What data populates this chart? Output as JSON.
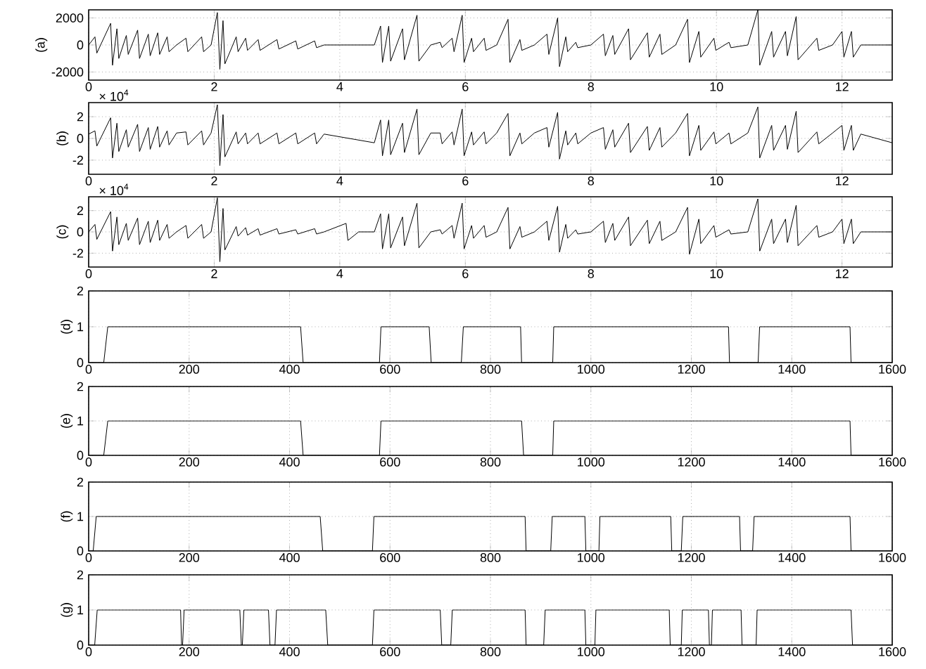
{
  "chart_data": [
    {
      "type": "line",
      "ylabel": "(a)",
      "color": "#000000",
      "grid": true,
      "xlim": [
        0,
        12.8
      ],
      "ylim": [
        -2600,
        2600
      ],
      "xticks": [
        0,
        2,
        4,
        6,
        8,
        10,
        12
      ],
      "yticks": [
        -2000,
        0,
        2000
      ],
      "x": [
        0,
        0.1,
        0.13,
        0.35,
        0.38,
        0.45,
        0.48,
        0.6,
        0.63,
        0.78,
        0.81,
        0.95,
        0.98,
        1.1,
        1.13,
        1.25,
        1.28,
        1.4,
        1.55,
        1.58,
        1.8,
        1.83,
        1.95,
        2.05,
        2.09,
        2.14,
        2.17,
        2.35,
        2.38,
        2.5,
        2.53,
        2.7,
        2.73,
        3.0,
        3.03,
        3.3,
        3.33,
        3.6,
        3.63,
        3.75,
        4.55,
        4.65,
        4.68,
        4.78,
        4.81,
        5.0,
        5.03,
        5.23,
        5.26,
        5.45,
        5.6,
        5.63,
        5.79,
        5.82,
        5.95,
        5.98,
        6.1,
        6.13,
        6.3,
        6.33,
        6.5,
        6.68,
        6.71,
        6.87,
        6.9,
        7.1,
        7.3,
        7.33,
        7.47,
        7.5,
        7.6,
        7.63,
        7.76,
        7.79,
        8.0,
        8.2,
        8.23,
        8.35,
        8.38,
        8.6,
        8.63,
        8.9,
        8.93,
        9.1,
        9.13,
        9.35,
        9.54,
        9.57,
        9.72,
        9.75,
        9.96,
        9.99,
        10.2,
        10.23,
        10.5,
        10.66,
        10.69,
        10.88,
        10.91,
        11.1,
        11.13,
        11.27,
        11.3,
        11.6,
        11.63,
        11.85,
        12.0,
        12.03,
        12.15,
        12.18,
        12.3,
        12.8
      ],
      "values": [
        0,
        600,
        -600,
        1600,
        -1500,
        1200,
        -1000,
        700,
        -700,
        1100,
        -1000,
        800,
        -800,
        900,
        -700,
        600,
        -500,
        0,
        500,
        -500,
        600,
        -500,
        0,
        2400,
        -1800,
        1800,
        -1400,
        600,
        -500,
        500,
        -400,
        400,
        -400,
        400,
        -300,
        300,
        -300,
        300,
        -200,
        0,
        0,
        1400,
        -1300,
        1400,
        -1200,
        1200,
        -1100,
        2200,
        -1200,
        0,
        200,
        -200,
        500,
        -500,
        2200,
        -1300,
        500,
        -500,
        500,
        -400,
        0,
        1900,
        -1300,
        400,
        -400,
        0,
        800,
        -700,
        2000,
        -1600,
        600,
        -500,
        200,
        -200,
        0,
        800,
        -800,
        700,
        -700,
        1200,
        -1100,
        900,
        -900,
        800,
        -700,
        0,
        1900,
        -1300,
        1000,
        -900,
        500,
        -400,
        200,
        -200,
        0,
        2600,
        -1500,
        1000,
        -900,
        1000,
        -800,
        2100,
        -1100,
        500,
        -400,
        0,
        1000,
        -900,
        1000,
        -900,
        0,
        0
      ]
    },
    {
      "type": "line",
      "ylabel": "(b)",
      "color": "#000000",
      "grid": true,
      "xlim": [
        0,
        12.8
      ],
      "ylim": [
        -3.3,
        3.3
      ],
      "xticks": [
        0,
        2,
        4,
        6,
        8,
        10,
        12
      ],
      "yticks": [
        -2,
        0,
        2
      ],
      "annotations": [
        "× 10$^{4}$"
      ],
      "x": [
        0,
        0.1,
        0.13,
        0.35,
        0.38,
        0.45,
        0.48,
        0.6,
        0.63,
        0.78,
        0.81,
        0.95,
        0.98,
        1.1,
        1.13,
        1.25,
        1.28,
        1.4,
        1.55,
        1.58,
        1.8,
        1.83,
        1.95,
        2.05,
        2.09,
        2.14,
        2.17,
        2.35,
        2.38,
        2.5,
        2.53,
        2.7,
        2.73,
        3.0,
        3.03,
        3.3,
        3.33,
        3.6,
        3.63,
        3.75,
        4.55,
        4.65,
        4.68,
        4.78,
        4.81,
        5.0,
        5.03,
        5.23,
        5.26,
        5.45,
        5.6,
        5.63,
        5.79,
        5.82,
        5.95,
        5.98,
        6.1,
        6.13,
        6.3,
        6.33,
        6.5,
        6.68,
        6.71,
        6.87,
        6.9,
        7.1,
        7.3,
        7.33,
        7.47,
        7.5,
        7.6,
        7.63,
        7.76,
        7.79,
        8.0,
        8.2,
        8.23,
        8.35,
        8.38,
        8.6,
        8.63,
        8.9,
        8.93,
        9.1,
        9.13,
        9.35,
        9.54,
        9.57,
        9.72,
        9.75,
        9.96,
        9.99,
        10.2,
        10.23,
        10.5,
        10.66,
        10.69,
        10.88,
        10.91,
        11.1,
        11.13,
        11.27,
        11.3,
        11.6,
        11.63,
        11.85,
        12.0,
        12.03,
        12.15,
        12.18,
        12.3,
        12.8
      ],
      "values": [
        0.4,
        0.7,
        -0.7,
        1.9,
        -1.8,
        1.4,
        -1.2,
        0.8,
        -0.8,
        1.3,
        -1.2,
        1.0,
        -1.0,
        1.1,
        -0.8,
        0.7,
        -0.6,
        0.5,
        0.6,
        -0.6,
        0.7,
        -0.6,
        0.5,
        3.1,
        -2.5,
        2.2,
        -1.7,
        0.6,
        -0.5,
        0.5,
        -0.5,
        0.5,
        -0.5,
        0.5,
        -0.5,
        0.5,
        -0.5,
        0.5,
        -0.5,
        0.4,
        -0.4,
        1.7,
        -1.6,
        1.7,
        -1.5,
        1.4,
        -1.3,
        2.7,
        -1.5,
        0.5,
        0.5,
        -0.5,
        0.6,
        -0.6,
        2.7,
        -1.6,
        0.6,
        -0.6,
        0.6,
        -0.5,
        0.5,
        2.3,
        -1.6,
        0.5,
        -0.5,
        0.5,
        1.0,
        -0.8,
        2.4,
        -1.9,
        0.7,
        -0.6,
        0.5,
        -0.5,
        0.5,
        1.0,
        -1.0,
        0.8,
        -0.8,
        1.4,
        -1.3,
        1.1,
        -1.1,
        1.0,
        -0.8,
        0.5,
        2.3,
        -1.6,
        1.2,
        -1.1,
        0.6,
        -0.5,
        0.5,
        -0.5,
        0.5,
        2.9,
        -1.8,
        1.2,
        -1.1,
        1.2,
        -1.0,
        2.5,
        -1.3,
        0.6,
        -0.5,
        0.5,
        1.2,
        -1.1,
        1.2,
        -1.1,
        0.4,
        -0.4
      ]
    },
    {
      "type": "line",
      "ylabel": "(c)",
      "color": "#000000",
      "grid": true,
      "xlim": [
        0,
        12.8
      ],
      "ylim": [
        -3.3,
        3.3
      ],
      "xticks": [
        0,
        2,
        4,
        6,
        8,
        10,
        12
      ],
      "yticks": [
        -2,
        0,
        2
      ],
      "annotations": [
        "× 10$^{4}$"
      ],
      "x": [
        0,
        0.1,
        0.13,
        0.35,
        0.38,
        0.45,
        0.48,
        0.6,
        0.63,
        0.78,
        0.81,
        0.95,
        0.98,
        1.1,
        1.13,
        1.25,
        1.28,
        1.4,
        1.55,
        1.58,
        1.8,
        1.83,
        1.95,
        2.05,
        2.09,
        2.14,
        2.17,
        2.35,
        2.38,
        2.5,
        2.53,
        2.7,
        2.73,
        3.0,
        3.03,
        3.3,
        3.33,
        3.6,
        3.63,
        3.75,
        4.1,
        4.13,
        4.3,
        4.55,
        4.65,
        4.68,
        4.78,
        4.81,
        5.0,
        5.03,
        5.23,
        5.26,
        5.45,
        5.6,
        5.63,
        5.79,
        5.82,
        5.95,
        5.98,
        6.1,
        6.13,
        6.3,
        6.33,
        6.5,
        6.68,
        6.71,
        6.87,
        6.9,
        7.1,
        7.3,
        7.33,
        7.47,
        7.5,
        7.6,
        7.63,
        7.76,
        7.79,
        8.0,
        8.2,
        8.23,
        8.35,
        8.38,
        8.6,
        8.63,
        8.9,
        8.93,
        9.1,
        9.13,
        9.35,
        9.54,
        9.57,
        9.72,
        9.75,
        9.96,
        9.99,
        10.2,
        10.23,
        10.5,
        10.66,
        10.69,
        10.88,
        10.91,
        11.1,
        11.13,
        11.27,
        11.3,
        11.6,
        11.63,
        11.85,
        12.0,
        12.03,
        12.15,
        12.18,
        12.3,
        12.8
      ],
      "values": [
        0,
        0.7,
        -0.7,
        1.9,
        -1.8,
        1.4,
        -1.2,
        0.8,
        -0.8,
        1.3,
        -1.2,
        1.0,
        -1.0,
        1.1,
        -0.8,
        0.7,
        -0.6,
        0,
        0.6,
        -0.6,
        0.7,
        -0.6,
        0,
        3.2,
        -2.8,
        2.2,
        -1.7,
        0.5,
        -0.4,
        0.4,
        -0.3,
        0.3,
        -0.3,
        0.3,
        -0.2,
        0.2,
        -0.2,
        0.3,
        -0.2,
        0,
        0.8,
        -0.8,
        0,
        0,
        1.7,
        -1.6,
        1.7,
        -1.5,
        1.4,
        -1.3,
        2.7,
        -1.5,
        0,
        0.2,
        -0.2,
        0.6,
        -0.6,
        2.7,
        -1.6,
        0.6,
        -0.6,
        0.6,
        -0.5,
        0,
        2.3,
        -1.6,
        0.5,
        -0.5,
        0,
        1.0,
        -0.8,
        2.4,
        -1.9,
        0.7,
        -0.6,
        0.2,
        -0.2,
        0,
        1.0,
        -1.0,
        0.8,
        -0.8,
        1.4,
        -1.3,
        1.1,
        -1.1,
        1.0,
        -0.8,
        0,
        2.3,
        -2.1,
        1.2,
        -1.1,
        0.6,
        -0.5,
        0.2,
        -0.2,
        0,
        3.1,
        -1.8,
        1.2,
        -1.1,
        1.2,
        -1.0,
        2.5,
        -1.3,
        0.6,
        -0.5,
        0,
        1.2,
        -1.1,
        1.2,
        -1.1,
        0,
        0
      ]
    },
    {
      "type": "line",
      "ylabel": "(d)",
      "color": "#000000",
      "grid": true,
      "xlim": [
        0,
        1600
      ],
      "ylim": [
        0,
        2
      ],
      "xticks": [
        0,
        200,
        400,
        600,
        800,
        1000,
        1200,
        1400,
        1600
      ],
      "yticks": [
        0,
        1,
        2
      ],
      "x": [
        0,
        30,
        38,
        422,
        427,
        579,
        582,
        678,
        682,
        742,
        746,
        860,
        862,
        924,
        926,
        1274,
        1276,
        1333,
        1336,
        1516,
        1518,
        1600
      ],
      "values": [
        0,
        0,
        1,
        1,
        0,
        0,
        1,
        1,
        0,
        0,
        1,
        1,
        0,
        0,
        1,
        1,
        0,
        0,
        1,
        1,
        0,
        0
      ]
    },
    {
      "type": "line",
      "ylabel": "(e)",
      "color": "#000000",
      "grid": true,
      "xlim": [
        0,
        1600
      ],
      "ylim": [
        0,
        2
      ],
      "xticks": [
        0,
        200,
        400,
        600,
        800,
        1000,
        1200,
        1400,
        1600
      ],
      "yticks": [
        0,
        1,
        2
      ],
      "x": [
        0,
        30,
        38,
        422,
        427,
        579,
        582,
        862,
        866,
        924,
        926,
        1516,
        1518,
        1600
      ],
      "values": [
        0,
        0,
        1,
        1,
        0,
        0,
        1,
        1,
        0,
        0,
        1,
        1,
        0,
        0
      ]
    },
    {
      "type": "line",
      "ylabel": "(f)",
      "color": "#000000",
      "grid": true,
      "xlim": [
        0,
        1600
      ],
      "ylim": [
        0,
        2
      ],
      "xticks": [
        0,
        200,
        400,
        600,
        800,
        1000,
        1200,
        1400,
        1600
      ],
      "yticks": [
        0,
        1,
        2
      ],
      "x": [
        0,
        9,
        15,
        461,
        466,
        565,
        568,
        869,
        871,
        920,
        923,
        988,
        990,
        1016,
        1018,
        1159,
        1161,
        1180,
        1183,
        1296,
        1298,
        1322,
        1325,
        1516,
        1518,
        1600
      ],
      "values": [
        0,
        0,
        1,
        1,
        0,
        0,
        1,
        1,
        0,
        0,
        1,
        1,
        0,
        0,
        1,
        1,
        0,
        0,
        1,
        1,
        0,
        0,
        1,
        1,
        0,
        0
      ]
    },
    {
      "type": "line",
      "ylabel": "(g)",
      "color": "#000000",
      "grid": true,
      "xlim": [
        0,
        1600
      ],
      "ylim": [
        0,
        2
      ],
      "xticks": [
        0,
        200,
        400,
        600,
        800,
        1000,
        1200,
        1400,
        1600
      ],
      "yticks": [
        0,
        1,
        2
      ],
      "x": [
        0,
        12,
        17,
        183,
        185,
        187,
        190,
        301,
        304,
        306,
        309,
        358,
        361,
        371,
        374,
        472,
        476,
        565,
        568,
        700,
        703,
        721,
        724,
        869,
        871,
        906,
        909,
        988,
        990,
        1008,
        1010,
        1156,
        1158,
        1180,
        1182,
        1234,
        1236,
        1240,
        1242,
        1299,
        1301,
        1329,
        1331,
        1518,
        1521,
        1600
      ],
      "values": [
        0,
        0,
        1,
        1,
        0,
        0,
        1,
        1,
        0,
        0,
        1,
        1,
        0,
        0,
        1,
        1,
        0,
        0,
        1,
        1,
        0,
        0,
        1,
        1,
        0,
        0,
        1,
        1,
        0,
        0,
        1,
        1,
        0,
        0,
        1,
        1,
        0,
        0,
        1,
        1,
        0,
        0,
        1,
        1,
        0,
        0
      ]
    }
  ]
}
